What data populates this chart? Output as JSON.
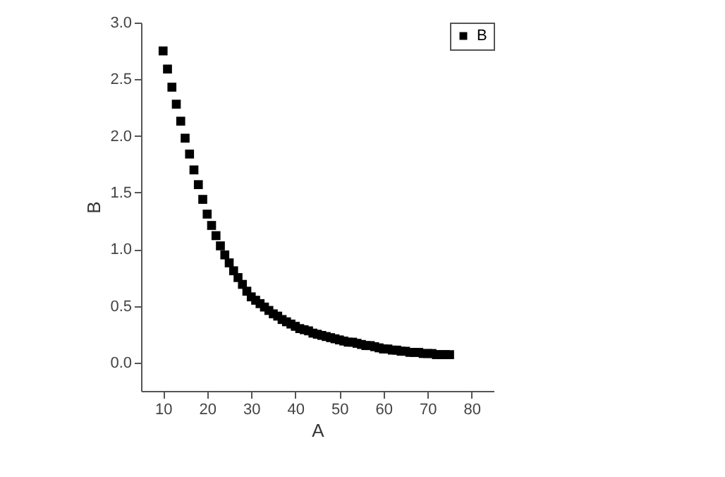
{
  "chart_data": {
    "type": "scatter",
    "xlabel": "A",
    "ylabel": "B",
    "x": [
      10,
      11,
      12,
      13,
      14,
      15,
      16,
      17,
      18,
      19,
      20,
      21,
      22,
      23,
      24,
      25,
      26,
      27,
      28,
      29,
      30,
      31,
      32,
      33,
      34,
      35,
      36,
      37,
      38,
      39,
      40,
      41,
      42,
      43,
      44,
      45,
      46,
      47,
      48,
      49,
      50,
      51,
      52,
      53,
      54,
      55,
      56,
      57,
      58,
      59,
      60,
      61,
      62,
      63,
      64,
      65,
      66,
      67,
      68,
      69,
      70,
      71,
      72,
      73,
      74,
      75
    ],
    "series": [
      {
        "name": "B",
        "color": "#000000",
        "values": [
          2.75,
          2.59,
          2.43,
          2.28,
          2.13,
          1.98,
          1.84,
          1.7,
          1.57,
          1.44,
          1.31,
          1.21,
          1.12,
          1.03,
          0.95,
          0.88,
          0.81,
          0.75,
          0.69,
          0.63,
          0.58,
          0.55,
          0.52,
          0.49,
          0.46,
          0.43,
          0.41,
          0.38,
          0.36,
          0.34,
          0.32,
          0.3,
          0.29,
          0.28,
          0.26,
          0.25,
          0.24,
          0.23,
          0.22,
          0.21,
          0.2,
          0.19,
          0.18,
          0.18,
          0.17,
          0.16,
          0.15,
          0.15,
          0.14,
          0.13,
          0.12,
          0.12,
          0.11,
          0.11,
          0.1,
          0.1,
          0.09,
          0.09,
          0.09,
          0.08,
          0.08,
          0.08,
          0.07,
          0.07,
          0.07,
          0.07
        ]
      }
    ],
    "xlim": [
      5,
      85
    ],
    "xticks": [
      10,
      20,
      30,
      40,
      50,
      60,
      70,
      80
    ],
    "ylim": [
      -0.25,
      3.0
    ],
    "yticks": [
      {
        "value": 0,
        "label": "0.0"
      },
      0.5,
      {
        "value": 1,
        "label": "1.0"
      },
      1.5,
      {
        "value": 2,
        "label": "2.0"
      },
      2.5,
      {
        "value": 3,
        "label": "3.0"
      }
    ],
    "marker": "square",
    "grid": false,
    "legend": "top right"
  }
}
